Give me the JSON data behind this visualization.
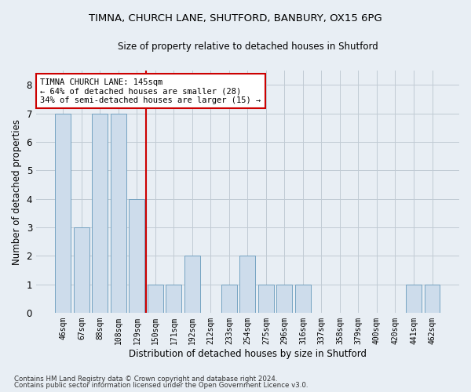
{
  "title_line1": "TIMNA, CHURCH LANE, SHUTFORD, BANBURY, OX15 6PG",
  "title_line2": "Size of property relative to detached houses in Shutford",
  "xlabel": "Distribution of detached houses by size in Shutford",
  "ylabel": "Number of detached properties",
  "categories": [
    "46sqm",
    "67sqm",
    "88sqm",
    "108sqm",
    "129sqm",
    "150sqm",
    "171sqm",
    "192sqm",
    "212sqm",
    "233sqm",
    "254sqm",
    "275sqm",
    "296sqm",
    "316sqm",
    "337sqm",
    "358sqm",
    "379sqm",
    "400sqm",
    "420sqm",
    "441sqm",
    "462sqm"
  ],
  "values": [
    7,
    3,
    7,
    7,
    4,
    1,
    1,
    2,
    0,
    1,
    2,
    1,
    1,
    1,
    0,
    0,
    0,
    0,
    0,
    1,
    1
  ],
  "bar_color": "#cddceb",
  "bar_edge_color": "#6699bb",
  "red_line_index": 4,
  "annotation_text": "TIMNA CHURCH LANE: 145sqm\n← 64% of detached houses are smaller (28)\n34% of semi-detached houses are larger (15) →",
  "annotation_box_color": "white",
  "annotation_box_edge": "#cc0000",
  "red_line_color": "#cc0000",
  "ylim": [
    0,
    8.5
  ],
  "yticks": [
    0,
    1,
    2,
    3,
    4,
    5,
    6,
    7,
    8
  ],
  "footer_line1": "Contains HM Land Registry data © Crown copyright and database right 2024.",
  "footer_line2": "Contains public sector information licensed under the Open Government Licence v3.0.",
  "background_color": "#e8eef4",
  "grid_color": "#c0cad4"
}
